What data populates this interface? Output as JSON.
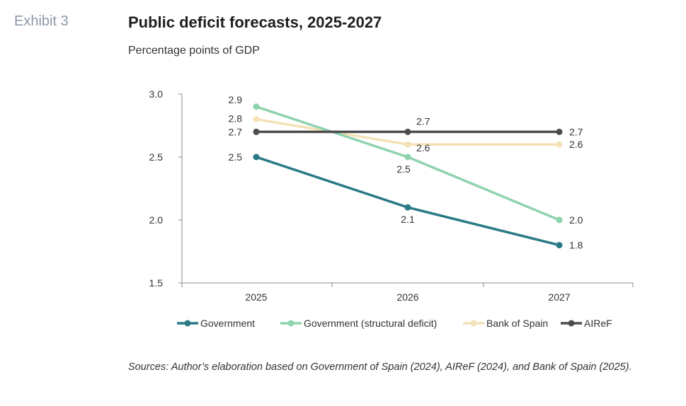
{
  "header": {
    "exhibit": "Exhibit 3",
    "title": "Public deficit forecasts, 2025-2027",
    "subtitle": "Percentage points of GDP"
  },
  "footnote": "Sources: Author’s elaboration based on Government of Spain (2024), AIReF (2024), and Bank of Spain (2025).",
  "chart_data": {
    "type": "line",
    "title": "Public deficit forecasts, 2025-2027",
    "subtitle": "Percentage points of GDP",
    "xlabel": "",
    "ylabel": "",
    "categories": [
      "2025",
      "2026",
      "2027"
    ],
    "ylim": [
      1.5,
      3.0
    ],
    "yticks": [
      "1.5",
      "2.0",
      "2.5",
      "3.0"
    ],
    "grid": false,
    "legend_position": "bottom",
    "series": [
      {
        "name": "Government",
        "values": [
          2.5,
          2.1,
          1.8
        ],
        "labels": [
          "2.5",
          "2.1",
          "1.8"
        ],
        "color": "#2a7a85"
      },
      {
        "name": "Government (structural deficit)",
        "values": [
          2.9,
          2.5,
          2.0
        ],
        "labels": [
          "2.9",
          "2.5",
          "2.0"
        ],
        "color": "#8fd3ae"
      },
      {
        "name": "Bank of Spain",
        "values": [
          2.8,
          2.6,
          2.6
        ],
        "labels": [
          "2.8",
          "2.6",
          "2.6"
        ],
        "color": "#f3e2b8"
      },
      {
        "name": "AIReF",
        "values": [
          2.7,
          2.7,
          2.7
        ],
        "labels": [
          "2.7",
          "2.7",
          "2.7"
        ],
        "color": "#4d4d4d"
      }
    ]
  }
}
